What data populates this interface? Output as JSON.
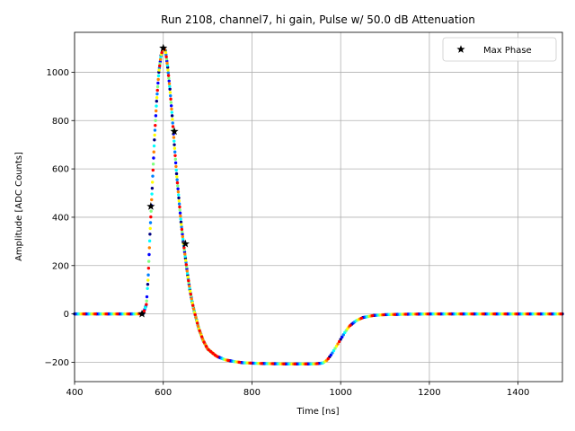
{
  "chart_data": {
    "type": "scatter",
    "title": "Run 2108, channel7, hi gain, Pulse w/ 50.0 dB Attenuation",
    "xlabel": "Time [ns]",
    "ylabel": "Amplitude [ADC Counts]",
    "xlim": [
      400,
      1500
    ],
    "ylim": [
      -280,
      1165
    ],
    "xticks": [
      400,
      600,
      800,
      1000,
      1200,
      1400
    ],
    "yticks": [
      -200,
      0,
      200,
      400,
      600,
      800,
      1000
    ],
    "grid": true,
    "legend": {
      "position": "top-right",
      "entries": [
        "Max Phase"
      ]
    },
    "colormap": "jet",
    "pulse_curve": [
      [
        400,
        0
      ],
      [
        540,
        0
      ],
      [
        555,
        2
      ],
      [
        562,
        40
      ],
      [
        566,
        150
      ],
      [
        570,
        330
      ],
      [
        575,
        520
      ],
      [
        580,
        720
      ],
      [
        585,
        880
      ],
      [
        590,
        1000
      ],
      [
        595,
        1070
      ],
      [
        600,
        1100
      ],
      [
        605,
        1090
      ],
      [
        610,
        1020
      ],
      [
        615,
        930
      ],
      [
        620,
        820
      ],
      [
        625,
        700
      ],
      [
        630,
        580
      ],
      [
        635,
        480
      ],
      [
        640,
        380
      ],
      [
        645,
        300
      ],
      [
        650,
        230
      ],
      [
        655,
        160
      ],
      [
        660,
        100
      ],
      [
        665,
        50
      ],
      [
        670,
        10
      ],
      [
        680,
        -60
      ],
      [
        690,
        -110
      ],
      [
        700,
        -145
      ],
      [
        720,
        -175
      ],
      [
        740,
        -190
      ],
      [
        760,
        -197
      ],
      [
        780,
        -202
      ],
      [
        820,
        -205
      ],
      [
        880,
        -207
      ],
      [
        940,
        -207
      ],
      [
        960,
        -203
      ],
      [
        970,
        -190
      ],
      [
        980,
        -165
      ],
      [
        990,
        -135
      ],
      [
        1000,
        -105
      ],
      [
        1010,
        -75
      ],
      [
        1020,
        -50
      ],
      [
        1035,
        -28
      ],
      [
        1050,
        -15
      ],
      [
        1075,
        -6
      ],
      [
        1100,
        -3
      ],
      [
        1150,
        -1
      ],
      [
        1200,
        0
      ],
      [
        1500,
        0
      ]
    ],
    "series": [
      {
        "name": "Max Phase",
        "marker": "star",
        "x": [
          552,
          572,
          600,
          625,
          650
        ],
        "y": [
          0,
          445,
          1100,
          755,
          290
        ]
      }
    ]
  }
}
